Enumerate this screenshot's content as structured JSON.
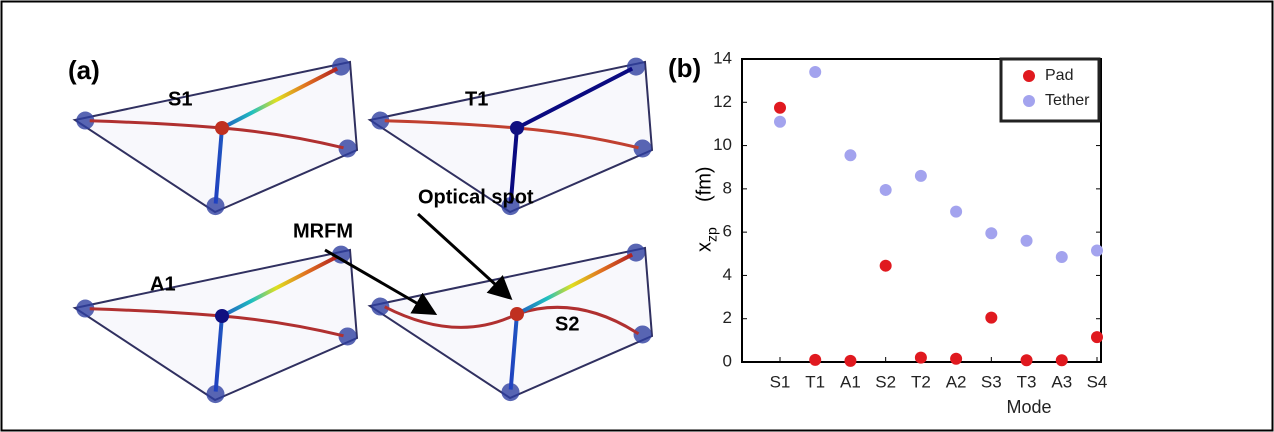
{
  "panel_a": {
    "label": "(a)",
    "modes": [
      "S1",
      "T1",
      "A1",
      "S2"
    ],
    "annotations": [
      "Optical spot",
      "MRFM"
    ]
  },
  "panel_b": {
    "label": "(b)"
  },
  "chart_data": {
    "type": "scatter",
    "xlabel": "Mode",
    "ylabel": "x",
    "ylabel_sub": "zp",
    "ylabel_unit": "(fm)",
    "categories": [
      "S1",
      "T1",
      "A1",
      "S2",
      "T2",
      "A2",
      "S3",
      "T3",
      "A3",
      "S4"
    ],
    "series": [
      {
        "name": "Pad",
        "color": "#e0191f",
        "values": [
          11.75,
          0.1,
          0.05,
          4.45,
          0.2,
          0.15,
          2.05,
          0.08,
          0.08,
          1.15
        ]
      },
      {
        "name": "Tether",
        "color": "#a3a3ee",
        "values": [
          11.1,
          13.4,
          9.55,
          7.95,
          8.6,
          6.95,
          5.95,
          5.6,
          4.85,
          5.15
        ]
      }
    ],
    "ylim": [
      0,
      14
    ],
    "yticks": [
      0,
      2,
      4,
      6,
      8,
      10,
      12,
      14
    ],
    "legend": "top-right"
  }
}
